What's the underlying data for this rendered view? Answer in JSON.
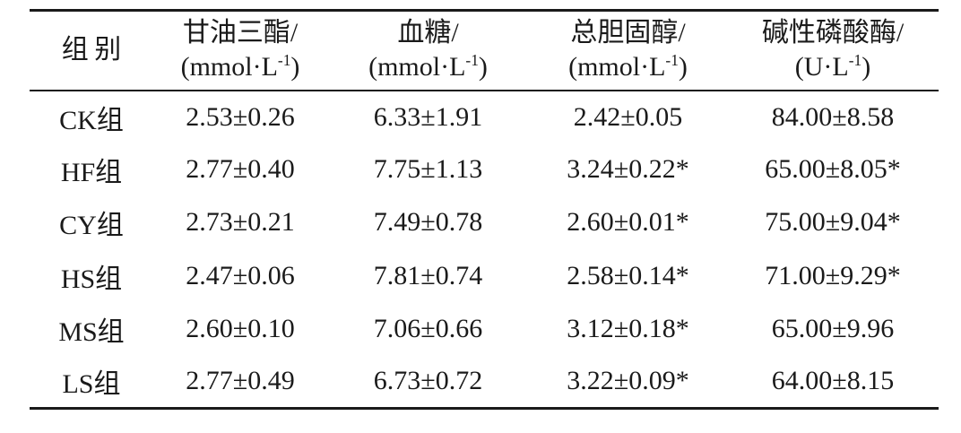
{
  "table": {
    "columns": [
      {
        "label": "组别"
      },
      {
        "label": "甘油三酯/",
        "unit_base": "(mmol·L",
        "unit_sup": "-1",
        "unit_close": ")"
      },
      {
        "label": "血糖/",
        "unit_base": "(mmol·L",
        "unit_sup": "-1",
        "unit_close": ")"
      },
      {
        "label": "总胆固醇/",
        "unit_base": "(mmol·L",
        "unit_sup": "-1",
        "unit_close": ")"
      },
      {
        "label": "碱性磷酸酶/",
        "unit_base": "(U·L",
        "unit_sup": "-1",
        "unit_close": ")"
      }
    ],
    "rows": [
      {
        "group": "CK组",
        "values": [
          "2.53±0.26",
          "6.33±1.91",
          "2.42±0.05",
          "84.00±8.58"
        ]
      },
      {
        "group": "HF组",
        "values": [
          "2.77±0.40",
          "7.75±1.13",
          "3.24±0.22*",
          "65.00±8.05*"
        ]
      },
      {
        "group": "CY组",
        "values": [
          "2.73±0.21",
          "7.49±0.78",
          "2.60±0.01*",
          "75.00±9.04*"
        ]
      },
      {
        "group": "HS组",
        "values": [
          "2.47±0.06",
          "7.81±0.74",
          "2.58±0.14*",
          "71.00±9.29*"
        ]
      },
      {
        "group": "MS组",
        "values": [
          "2.60±0.10",
          "7.06±0.66",
          "3.12±0.18*",
          "65.00±9.96"
        ]
      },
      {
        "group": "LS组",
        "values": [
          "2.77±0.49",
          "6.73±0.72",
          "3.22±0.09*",
          "64.00±8.15"
        ]
      }
    ],
    "colors": {
      "text": "#1a1a1a",
      "rule": "#1a1a1a",
      "background": "#ffffff"
    }
  },
  "chart_data": {
    "type": "table",
    "columns": [
      "组别",
      "甘油三酯/(mmol·L⁻¹)",
      "血糖/(mmol·L⁻¹)",
      "总胆固醇/(mmol·L⁻¹)",
      "碱性磷酸酶/(U·L⁻¹)"
    ],
    "rows": [
      [
        "CK组",
        "2.53±0.26",
        "6.33±1.91",
        "2.42±0.05",
        "84.00±8.58"
      ],
      [
        "HF组",
        "2.77±0.40",
        "7.75±1.13",
        "3.24±0.22*",
        "65.00±8.05*"
      ],
      [
        "CY组",
        "2.73±0.21",
        "7.49±0.78",
        "2.60±0.01*",
        "75.00±9.04*"
      ],
      [
        "HS组",
        "2.47±0.06",
        "7.81±0.74",
        "2.58±0.14*",
        "71.00±9.29*"
      ],
      [
        "MS组",
        "2.60±0.10",
        "7.06±0.66",
        "3.12±0.18*",
        "65.00±9.96"
      ],
      [
        "LS组",
        "2.77±0.49",
        "6.73±0.72",
        "3.22±0.09*",
        "64.00±8.15"
      ]
    ]
  }
}
